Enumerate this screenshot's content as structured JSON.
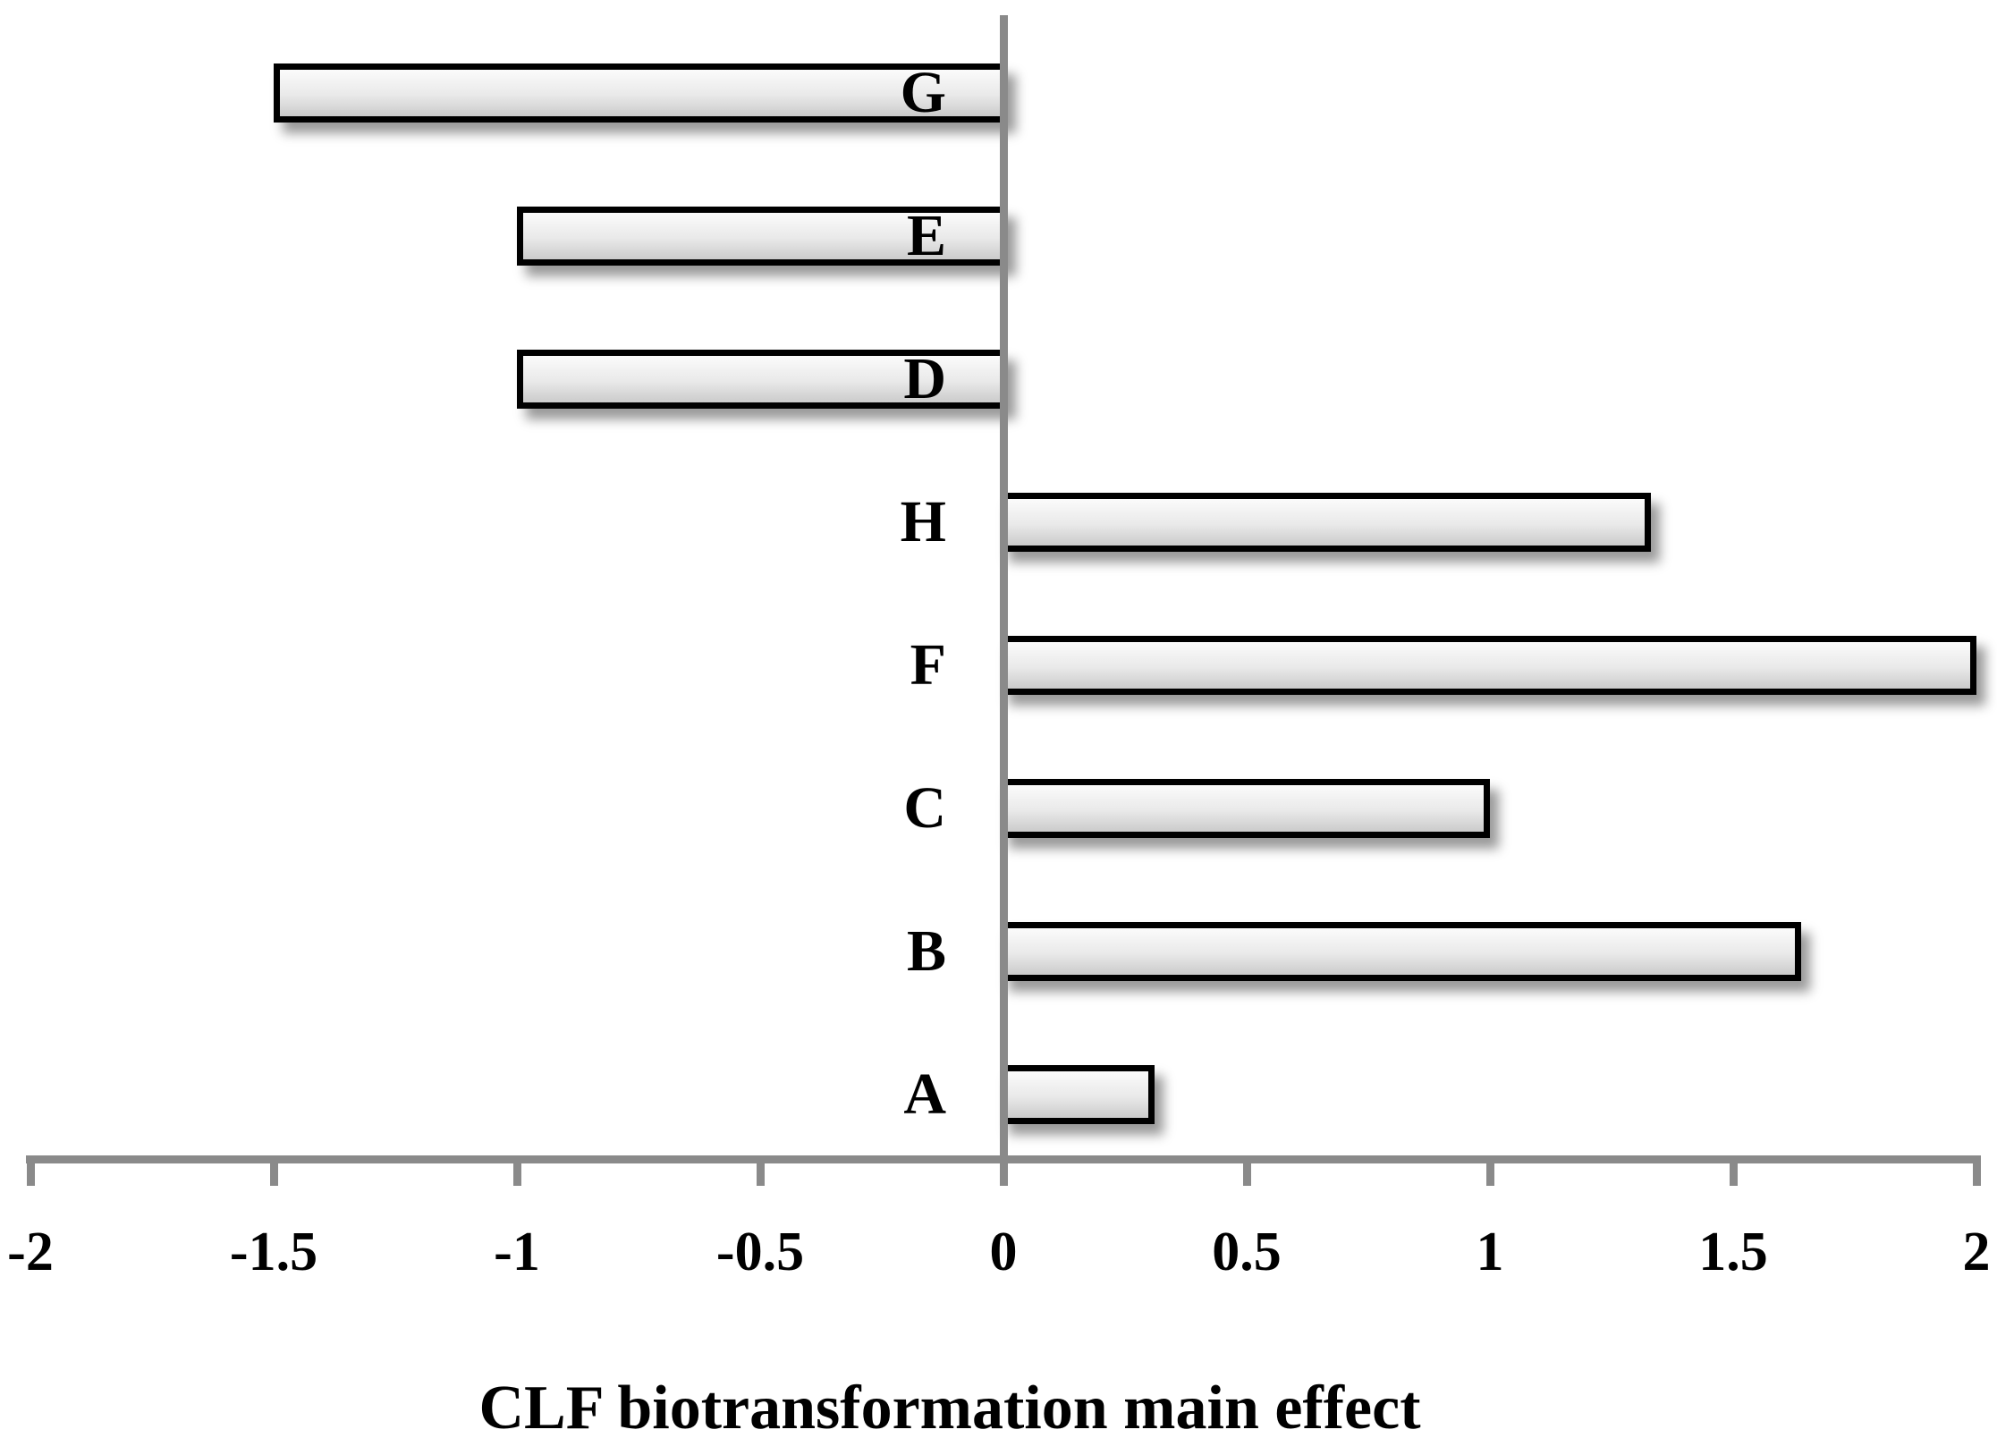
{
  "chart_data": {
    "type": "bar",
    "orientation": "horizontal",
    "title": "",
    "xlabel": "CLF biotransformation main effect",
    "ylabel": "",
    "categories": [
      "G",
      "E",
      "D",
      "H",
      "F",
      "C",
      "B",
      "A"
    ],
    "values": [
      -1.5,
      -1,
      -1,
      1.33,
      2,
      1,
      1.64,
      0.31
    ],
    "xlim": [
      -2,
      2
    ],
    "x_ticks": [
      -2,
      -1.5,
      -1,
      -0.5,
      0,
      0.5,
      1,
      1.5,
      2
    ],
    "x_tick_labels": [
      "-2",
      "-1.5",
      "-1",
      "-0.5",
      "0",
      "0.5",
      "1",
      "1.5",
      "2"
    ],
    "grid": false,
    "legend": "none",
    "bar_fill_top": "#fbfbfb",
    "bar_fill_bottom": "#cbcbcb",
    "bar_border_color": "#000000",
    "axis_color": "#8a8a8a",
    "text_color": "#000000"
  }
}
